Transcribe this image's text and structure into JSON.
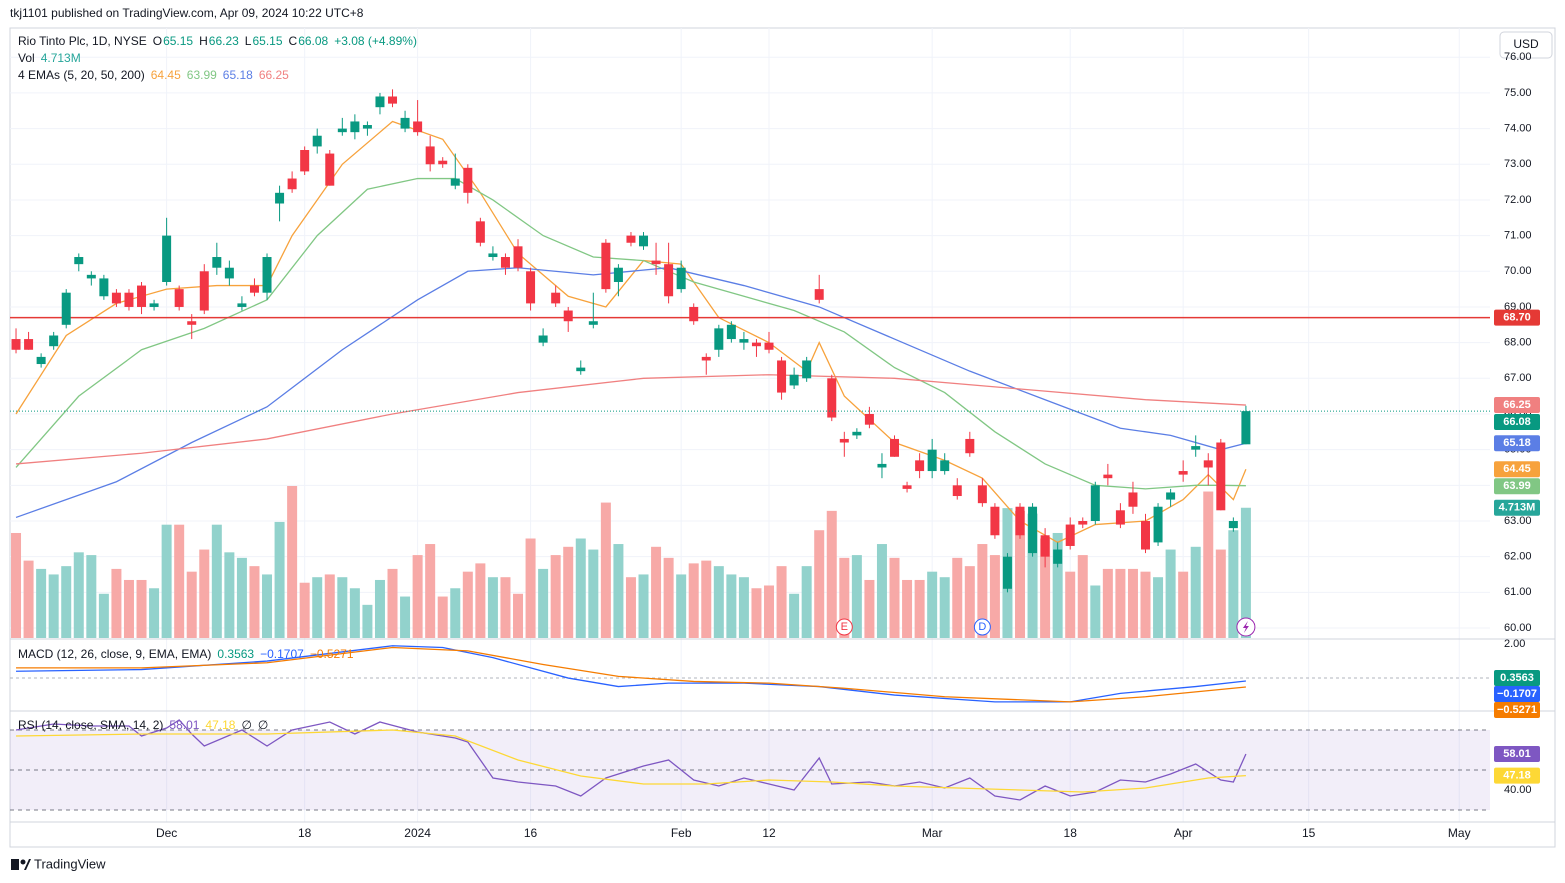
{
  "header": {
    "publisher": "tkj1101 published on TradingView.com, Apr 09, 2024 10:22 UTC+8",
    "currency": "USD",
    "brand": "TradingView"
  },
  "chart_data": {
    "type": "candlestick",
    "symbol": "Rio Tinto Plc, 1D, NYSE",
    "ohlc_labels": [
      "O",
      "H",
      "L",
      "C"
    ],
    "change": "+3.08 (+4.89%)",
    "up_color": "#089981",
    "down_color": "#f23645",
    "candles": [
      [
        68.1,
        68.4,
        67.7,
        67.8
      ],
      [
        68.1,
        68.3,
        67.8,
        67.8
      ],
      [
        67.4,
        67.7,
        67.3,
        67.6
      ],
      [
        67.9,
        68.3,
        67.8,
        68.2
      ],
      [
        68.5,
        69.5,
        68.4,
        69.4
      ],
      [
        70.2,
        70.5,
        70.0,
        70.4
      ],
      [
        69.8,
        70.0,
        69.6,
        69.9
      ],
      [
        69.3,
        69.9,
        69.2,
        69.8
      ],
      [
        69.4,
        69.5,
        69.0,
        69.1
      ],
      [
        69.4,
        69.5,
        68.9,
        69.0
      ],
      [
        69.6,
        69.7,
        68.8,
        69.0
      ],
      [
        69.0,
        69.2,
        68.9,
        69.1
      ],
      [
        69.7,
        71.5,
        69.6,
        71.0
      ],
      [
        69.5,
        69.6,
        68.9,
        69.0
      ],
      [
        68.6,
        68.8,
        68.1,
        68.5
      ],
      [
        70.0,
        70.2,
        68.8,
        68.9
      ],
      [
        70.1,
        70.8,
        69.9,
        70.4
      ],
      [
        69.8,
        70.3,
        69.6,
        70.1
      ],
      [
        69.0,
        69.3,
        68.9,
        69.1
      ],
      [
        69.6,
        69.8,
        69.3,
        69.4
      ],
      [
        69.4,
        70.5,
        69.2,
        70.4
      ],
      [
        71.9,
        72.4,
        71.4,
        72.2
      ],
      [
        72.6,
        72.8,
        72.2,
        72.3
      ],
      [
        73.4,
        73.5,
        72.7,
        72.8
      ],
      [
        73.5,
        74.0,
        73.3,
        73.8
      ],
      [
        73.3,
        73.4,
        72.4,
        72.4
      ],
      [
        73.9,
        74.3,
        73.8,
        74.0
      ],
      [
        73.9,
        74.4,
        73.7,
        74.2
      ],
      [
        74.0,
        74.2,
        73.8,
        74.1
      ],
      [
        74.6,
        75.0,
        74.4,
        74.9
      ],
      [
        74.9,
        75.1,
        74.6,
        74.7
      ],
      [
        74.0,
        74.5,
        73.9,
        74.3
      ],
      [
        74.2,
        74.8,
        73.8,
        73.9
      ],
      [
        73.5,
        73.8,
        72.8,
        73.0
      ],
      [
        73.1,
        73.2,
        72.9,
        73.0
      ],
      [
        72.4,
        73.3,
        72.3,
        72.6
      ],
      [
        72.9,
        73.0,
        71.9,
        72.2
      ],
      [
        71.4,
        71.5,
        70.7,
        70.8
      ],
      [
        70.4,
        70.7,
        70.3,
        70.5
      ],
      [
        70.4,
        70.5,
        69.9,
        70.1
      ],
      [
        70.7,
        70.9,
        70.0,
        70.1
      ],
      [
        70.0,
        70.1,
        68.9,
        69.1
      ],
      [
        68.0,
        68.4,
        67.9,
        68.2
      ],
      [
        69.4,
        69.6,
        69.0,
        69.1
      ],
      [
        68.9,
        69.0,
        68.3,
        68.6
      ],
      [
        67.2,
        67.5,
        67.1,
        67.3
      ],
      [
        68.5,
        69.4,
        68.4,
        68.6
      ],
      [
        70.8,
        70.9,
        69.4,
        69.5
      ],
      [
        69.7,
        70.2,
        69.3,
        70.1
      ],
      [
        71.0,
        71.1,
        70.7,
        70.8
      ],
      [
        70.7,
        71.1,
        70.6,
        71.0
      ],
      [
        70.3,
        70.8,
        69.9,
        70.2
      ],
      [
        70.2,
        70.8,
        69.1,
        69.3
      ],
      [
        69.5,
        70.3,
        69.4,
        70.1
      ],
      [
        69.0,
        69.1,
        68.5,
        68.6
      ],
      [
        67.6,
        67.7,
        67.1,
        67.5
      ],
      [
        67.8,
        68.5,
        67.6,
        68.4
      ],
      [
        68.1,
        68.6,
        68.0,
        68.5
      ],
      [
        68.0,
        68.3,
        67.8,
        68.1
      ],
      [
        68.0,
        68.1,
        67.6,
        67.9
      ],
      [
        68.0,
        68.3,
        67.7,
        67.8
      ],
      [
        67.5,
        67.6,
        66.4,
        66.6
      ],
      [
        66.8,
        67.3,
        66.7,
        67.1
      ],
      [
        67.0,
        67.6,
        66.9,
        67.5
      ],
      [
        69.5,
        69.9,
        69.1,
        69.2
      ],
      [
        67.0,
        67.1,
        65.8,
        65.9
      ],
      [
        65.3,
        65.5,
        64.8,
        65.2
      ],
      [
        65.4,
        65.6,
        65.3,
        65.5
      ],
      [
        66.0,
        66.2,
        65.6,
        65.7
      ],
      [
        64.5,
        64.9,
        64.2,
        64.6
      ],
      [
        65.3,
        65.4,
        64.8,
        64.8
      ],
      [
        64.0,
        64.1,
        63.8,
        63.9
      ],
      [
        64.7,
        64.9,
        64.2,
        64.4
      ],
      [
        64.4,
        65.3,
        64.2,
        65.0
      ],
      [
        64.4,
        64.9,
        64.3,
        64.7
      ],
      [
        64.0,
        64.2,
        63.6,
        63.7
      ],
      [
        65.3,
        65.5,
        64.8,
        64.9
      ],
      [
        64.0,
        64.2,
        63.4,
        63.5
      ],
      [
        63.4,
        63.5,
        62.5,
        62.6
      ],
      [
        61.1,
        62.1,
        61.0,
        62.0
      ],
      [
        63.4,
        63.5,
        62.5,
        62.6
      ],
      [
        62.1,
        63.5,
        62.0,
        63.4
      ],
      [
        62.6,
        62.8,
        61.7,
        62.0
      ],
      [
        61.8,
        62.4,
        61.7,
        62.2
      ],
      [
        62.9,
        63.1,
        62.2,
        62.3
      ],
      [
        63.0,
        63.1,
        62.8,
        62.9
      ],
      [
        63.0,
        64.1,
        62.9,
        64.0
      ],
      [
        64.3,
        64.6,
        64.0,
        64.2
      ],
      [
        63.3,
        63.5,
        62.8,
        62.9
      ],
      [
        63.8,
        64.1,
        63.2,
        63.4
      ],
      [
        63.0,
        63.2,
        62.1,
        62.2
      ],
      [
        62.4,
        63.5,
        62.3,
        63.4
      ],
      [
        63.6,
        63.9,
        63.4,
        63.8
      ],
      [
        64.4,
        64.7,
        64.1,
        64.3
      ],
      [
        65.0,
        65.4,
        64.8,
        65.1
      ],
      [
        64.7,
        64.9,
        64.0,
        64.5
      ],
      [
        65.2,
        65.3,
        63.3,
        63.3
      ],
      [
        62.8,
        63.1,
        62.7,
        63.0
      ],
      [
        65.15,
        66.23,
        65.15,
        66.08
      ]
    ],
    "volume": {
      "name": "Vol",
      "last_label": "4.713M",
      "values": [
        3.8,
        2.8,
        2.5,
        2.3,
        2.6,
        3.1,
        3.0,
        1.6,
        2.5,
        2.1,
        2.1,
        1.8,
        4.1,
        4.1,
        2.4,
        3.2,
        4.1,
        3.1,
        2.9,
        2.6,
        2.3,
        4.2,
        5.5,
        2.0,
        2.2,
        2.3,
        2.2,
        1.8,
        1.2,
        2.1,
        2.5,
        1.5,
        3.0,
        3.4,
        1.5,
        1.8,
        2.4,
        2.7,
        2.2,
        2.2,
        1.6,
        3.6,
        2.5,
        3.0,
        3.3,
        3.6,
        3.2,
        4.9,
        3.4,
        2.2,
        2.3,
        3.3,
        2.9,
        2.3,
        2.7,
        2.8,
        2.6,
        2.3,
        2.2,
        1.8,
        1.9,
        2.6,
        1.6,
        2.6,
        3.9,
        4.6,
        2.9,
        3.0,
        2.1,
        3.4,
        2.9,
        2.1,
        2.1,
        2.4,
        2.2,
        2.9,
        2.6,
        3.4,
        3.0,
        4.7,
        4.6,
        4.5,
        3.6,
        3.8,
        2.4,
        3.0,
        1.9,
        2.5,
        2.5,
        2.5,
        2.4,
        2.2,
        3.2,
        2.4,
        3.3,
        5.3,
        3.2,
        3.9,
        4.713
      ]
    },
    "ema": {
      "name": "4 EMAs (5, 20, 50, 200)",
      "series": [
        {
          "color": "#f7a23c",
          "x": [
            0,
            4,
            8,
            12,
            16,
            20,
            22,
            26,
            30,
            34,
            37,
            40,
            44,
            47,
            50,
            53,
            56,
            60,
            63,
            64,
            66,
            70,
            74,
            77,
            80,
            83,
            86,
            90,
            93,
            95,
            97,
            98
          ],
          "values": [
            66.0,
            68.2,
            69.1,
            69.5,
            69.6,
            69.6,
            71.0,
            73.0,
            74.2,
            73.7,
            72.2,
            70.5,
            69.3,
            69.0,
            70.3,
            70.2,
            68.7,
            68.0,
            67.2,
            68.0,
            66.5,
            65.2,
            64.7,
            64.2,
            63.0,
            62.4,
            62.9,
            63.0,
            63.6,
            64.3,
            63.6,
            64.45
          ]
        },
        {
          "color": "#81c784",
          "x": [
            0,
            5,
            10,
            15,
            20,
            24,
            28,
            32,
            35,
            38,
            42,
            46,
            50,
            54,
            58,
            62,
            66,
            70,
            74,
            78,
            82,
            86,
            90,
            94,
            96,
            98
          ],
          "values": [
            64.5,
            66.5,
            67.8,
            68.4,
            69.2,
            71.0,
            72.3,
            72.6,
            72.6,
            72.0,
            71.0,
            70.4,
            70.3,
            69.7,
            69.3,
            68.9,
            68.3,
            67.3,
            66.6,
            65.5,
            64.6,
            64.0,
            63.9,
            64.0,
            64.0,
            63.99
          ]
        },
        {
          "color": "#5b7ee5",
          "x": [
            0,
            8,
            14,
            20,
            26,
            32,
            36,
            40,
            46,
            52,
            58,
            64,
            70,
            76,
            82,
            88,
            92,
            96,
            98
          ],
          "values": [
            63.1,
            64.1,
            65.2,
            66.2,
            67.8,
            69.2,
            70.0,
            70.1,
            69.9,
            70.1,
            69.6,
            69.0,
            68.1,
            67.2,
            66.4,
            65.6,
            65.4,
            65.0,
            65.18
          ]
        },
        {
          "color": "#f08080",
          "x": [
            0,
            10,
            20,
            30,
            40,
            50,
            60,
            70,
            80,
            90,
            98
          ],
          "values": [
            64.6,
            64.9,
            65.3,
            66.0,
            66.6,
            67.0,
            67.1,
            67.0,
            66.7,
            66.4,
            66.25
          ]
        }
      ]
    },
    "hline": {
      "value": 68.7,
      "label": "68.70",
      "color": "#e53935"
    },
    "ylim": [
      59.72,
      76.82
    ],
    "yticks": [
      {
        "value": 60,
        "label": "60.00"
      },
      {
        "value": 61,
        "label": "61.00"
      },
      {
        "value": 62,
        "label": "62.00"
      },
      {
        "value": 63,
        "label": "63.00"
      },
      {
        "value": 64,
        "label": "64.00"
      },
      {
        "value": 65,
        "label": "65.00"
      },
      {
        "value": 66,
        "label": "66.00"
      },
      {
        "value": 67,
        "label": "67.00"
      },
      {
        "value": 68,
        "label": "68.00"
      },
      {
        "value": 69,
        "label": "69.00"
      },
      {
        "value": 70,
        "label": "70.00"
      },
      {
        "value": 71,
        "label": "71.00"
      },
      {
        "value": 72,
        "label": "72.00"
      },
      {
        "value": 73,
        "label": "73.00"
      },
      {
        "value": 74,
        "label": "74.00"
      },
      {
        "value": 75,
        "label": "75.00"
      },
      {
        "value": 76,
        "label": "76.00"
      }
    ],
    "xlim": [
      -0.48,
      117.45
    ],
    "xticks": [
      {
        "value": 12,
        "label": "Dec"
      },
      {
        "value": 23,
        "label": "18"
      },
      {
        "value": 32,
        "label": "2024"
      },
      {
        "value": 41,
        "label": "16"
      },
      {
        "value": 53,
        "label": "Feb"
      },
      {
        "value": 60,
        "label": "12"
      },
      {
        "value": 73,
        "label": "Mar"
      },
      {
        "value": 84,
        "label": "18"
      },
      {
        "value": 93,
        "label": "Apr"
      },
      {
        "value": 103,
        "label": "15"
      },
      {
        "value": 115,
        "label": "May"
      }
    ],
    "events": [
      {
        "x": 66,
        "label": "E",
        "color": "#f23645"
      },
      {
        "x": 77,
        "label": "D",
        "color": "#2962ff"
      }
    ],
    "flash_event": 98,
    "macd": {
      "name": "MACD (12, 26, close, 9, EMA, EMA)",
      "readout": [
        "0.3563",
        "−0.1707",
        "−0.5271"
      ],
      "readout_colors": [
        "#089981",
        "#2962ff",
        "#f57c00"
      ],
      "ylim": [
        -1.88,
        2.24
      ],
      "yticks": [
        {
          "value": 2,
          "label": "2.00"
        }
      ],
      "series": [
        {
          "color": "#2962ff",
          "x": [
            0,
            10,
            20,
            30,
            34,
            38,
            44,
            48,
            52,
            58,
            64,
            70,
            78,
            84,
            88,
            94,
            98
          ],
          "values": [
            0.4,
            0.5,
            1.0,
            1.9,
            1.8,
            1.2,
            0.0,
            -0.5,
            -0.3,
            -0.3,
            -0.5,
            -1.0,
            -1.4,
            -1.4,
            -0.9,
            -0.5,
            -0.1707
          ]
        },
        {
          "color": "#f57c00",
          "x": [
            0,
            10,
            20,
            30,
            36,
            42,
            48,
            54,
            60,
            66,
            74,
            84,
            90,
            98
          ],
          "values": [
            0.6,
            0.6,
            0.9,
            1.8,
            1.6,
            0.8,
            0.1,
            -0.2,
            -0.3,
            -0.6,
            -1.1,
            -1.4,
            -1.1,
            -0.5271
          ]
        }
      ]
    },
    "rsi": {
      "name": "RSI (14, close, SMA, 14, 2)",
      "extra": [
        "∅",
        "∅"
      ],
      "ylim": [
        24,
        79
      ],
      "yticks": [
        {
          "value": 40,
          "label": "40.00"
        }
      ],
      "levels": [
        70,
        50,
        30
      ],
      "series": [
        {
          "color": "#7e57c2",
          "x": [
            0,
            3,
            6,
            9,
            10,
            12,
            13,
            14,
            15,
            18,
            20,
            22,
            25,
            27,
            29,
            32,
            35,
            36,
            37,
            38,
            40,
            43,
            45,
            47,
            50,
            52,
            54,
            56,
            58,
            60,
            62,
            64,
            65,
            68,
            70,
            72,
            74,
            76,
            78,
            80,
            82,
            84,
            86,
            88,
            90,
            92,
            94,
            96,
            97,
            98
          ],
          "values": [
            70,
            73,
            72,
            72,
            67,
            71,
            75,
            68,
            62,
            70,
            62,
            70,
            74,
            68,
            74,
            69,
            66,
            64,
            55,
            46,
            44,
            42,
            37,
            46,
            52,
            55,
            45,
            42,
            46,
            43,
            40,
            56,
            43,
            44,
            42,
            44,
            41,
            46,
            37,
            35,
            42,
            37,
            39,
            45,
            44,
            48,
            53,
            45,
            44,
            58.01
          ]
        },
        {
          "color": "#fdd835",
          "x": [
            0,
            10,
            20,
            30,
            35,
            40,
            45,
            50,
            55,
            60,
            65,
            70,
            75,
            80,
            85,
            90,
            95,
            98
          ],
          "values": [
            67,
            68,
            68,
            70,
            67,
            55,
            47,
            43,
            43,
            45,
            44,
            42,
            41,
            40,
            39,
            41,
            46,
            47.18
          ]
        }
      ]
    }
  }
}
